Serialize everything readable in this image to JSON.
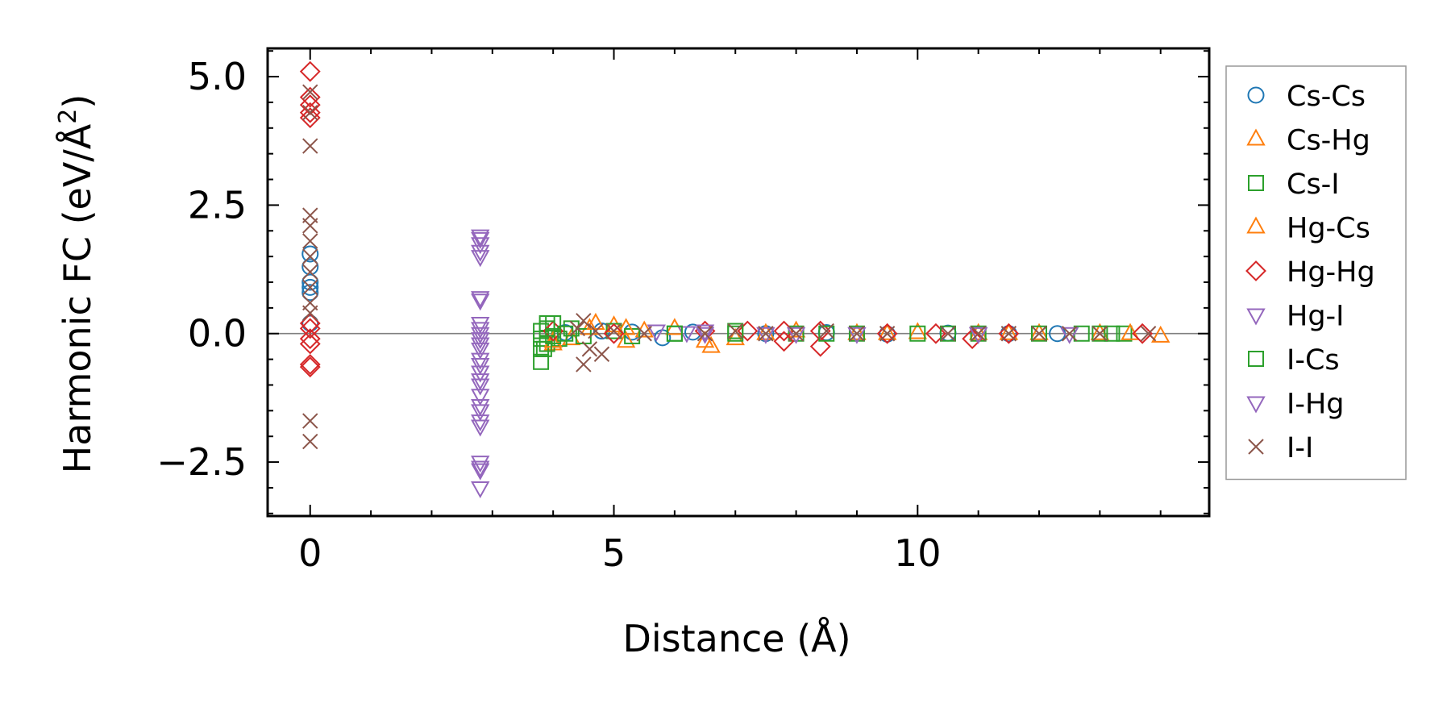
{
  "chart_data": {
    "type": "scatter",
    "title": "",
    "xlabel": "Distance (Å)",
    "ylabel_main": "Harmonic FC (eV/Å",
    "ylabel_sup": "2",
    "ylabel_close": ")",
    "xlim": [
      -0.7,
      14.8
    ],
    "ylim": [
      -3.55,
      5.55
    ],
    "xticks": [
      0,
      5,
      10
    ],
    "xtick_labels": [
      "0",
      "5",
      "10"
    ],
    "yticks": [
      -2.5,
      0.0,
      2.5,
      5.0
    ],
    "ytick_labels": [
      "−2.5",
      "0.0",
      "2.5",
      "5.0"
    ],
    "zero_line": true,
    "grid": false,
    "legend_position": "outside-right",
    "series": [
      {
        "name": "Cs-Cs",
        "marker": "circle",
        "color": "#1f77b4",
        "points": [
          [
            0,
            1.55
          ],
          [
            0,
            1.3
          ],
          [
            0,
            1.0
          ],
          [
            0,
            0.9
          ],
          [
            0,
            0.8
          ],
          [
            0,
            0.2
          ],
          [
            4.2,
            0.02
          ],
          [
            4.8,
            0.05
          ],
          [
            5.3,
            0.03
          ],
          [
            5.8,
            -0.08
          ],
          [
            6.3,
            0.03
          ],
          [
            7.5,
            0.0
          ],
          [
            8.5,
            0.02
          ],
          [
            9.5,
            -0.01
          ],
          [
            10.5,
            0.01
          ],
          [
            11.5,
            0.0
          ],
          [
            12.3,
            0.0
          ]
        ]
      },
      {
        "name": "Cs-Hg",
        "marker": "triangle-up",
        "color": "#ff7f0e",
        "points": [
          [
            4.0,
            -0.2
          ],
          [
            4.3,
            -0.1
          ],
          [
            4.6,
            0.1
          ],
          [
            5.0,
            0.15
          ],
          [
            5.2,
            -0.15
          ],
          [
            5.5,
            0.05
          ],
          [
            6.0,
            0.1
          ],
          [
            6.6,
            -0.25
          ],
          [
            7.0,
            -0.1
          ],
          [
            8.0,
            0.05
          ],
          [
            9.0,
            0.0
          ],
          [
            10.0,
            0.02
          ],
          [
            11.0,
            0.0
          ],
          [
            12.0,
            0.0
          ],
          [
            13.0,
            0.0
          ],
          [
            14.0,
            -0.05
          ]
        ]
      },
      {
        "name": "Cs-I",
        "marker": "square",
        "color": "#2ca02c",
        "points": [
          [
            3.8,
            -0.55
          ],
          [
            3.8,
            -0.3
          ],
          [
            3.8,
            -0.1
          ],
          [
            3.8,
            0.05
          ],
          [
            3.9,
            0.2
          ],
          [
            3.9,
            -0.2
          ],
          [
            4.0,
            0.2
          ],
          [
            4.1,
            -0.1
          ],
          [
            4.3,
            0.1
          ],
          [
            4.5,
            -0.05
          ],
          [
            5.0,
            0.05
          ],
          [
            5.3,
            -0.05
          ],
          [
            6.0,
            0.0
          ],
          [
            7.0,
            0.0
          ],
          [
            8.0,
            0.0
          ],
          [
            9.0,
            0.0
          ],
          [
            10.0,
            0.0
          ],
          [
            11.0,
            0.0
          ],
          [
            12.0,
            0.0
          ],
          [
            12.7,
            0.0
          ],
          [
            13.2,
            0.0
          ],
          [
            13.4,
            0.0
          ]
        ]
      },
      {
        "name": "Hg-Cs",
        "marker": "triangle-up",
        "color": "#ff7f0e",
        "points": [
          [
            4.0,
            -0.15
          ],
          [
            4.7,
            0.2
          ],
          [
            5.2,
            0.1
          ],
          [
            6.5,
            -0.15
          ],
          [
            7.5,
            0.0
          ],
          [
            9.5,
            0.0
          ],
          [
            11.5,
            0.0
          ],
          [
            13.5,
            0.0
          ]
        ]
      },
      {
        "name": "Hg-Hg",
        "marker": "diamond",
        "color": "#d62728",
        "points": [
          [
            0,
            5.1
          ],
          [
            0,
            4.6
          ],
          [
            0,
            4.45
          ],
          [
            0,
            4.3
          ],
          [
            0,
            4.2
          ],
          [
            0,
            0.2
          ],
          [
            0,
            0.1
          ],
          [
            0,
            -0.1
          ],
          [
            0,
            -0.2
          ],
          [
            0,
            -0.6
          ],
          [
            0,
            -0.65
          ],
          [
            4.0,
            0.05
          ],
          [
            5.0,
            0.0
          ],
          [
            6.5,
            0.05
          ],
          [
            7.2,
            0.05
          ],
          [
            7.8,
            -0.15
          ],
          [
            7.8,
            0.05
          ],
          [
            8.4,
            -0.25
          ],
          [
            8.4,
            0.05
          ],
          [
            9.5,
            0.0
          ],
          [
            10.3,
            0.0
          ],
          [
            10.9,
            -0.1
          ],
          [
            11.5,
            0.0
          ],
          [
            13.7,
            0.0
          ]
        ]
      },
      {
        "name": "Hg-I",
        "marker": "triangle-down",
        "color": "#9467bd",
        "points": [
          [
            2.8,
            1.9
          ],
          [
            2.8,
            1.75
          ],
          [
            2.8,
            1.6
          ],
          [
            2.8,
            1.5
          ],
          [
            2.8,
            0.65
          ],
          [
            2.8,
            0.2
          ],
          [
            2.8,
            0.1
          ],
          [
            2.8,
            0.0
          ],
          [
            2.8,
            -0.1
          ],
          [
            2.8,
            -0.3
          ],
          [
            2.8,
            -0.5
          ],
          [
            2.8,
            -0.6
          ],
          [
            2.8,
            -0.9
          ],
          [
            2.8,
            -1.0
          ],
          [
            2.8,
            -1.4
          ],
          [
            2.8,
            -1.5
          ],
          [
            2.8,
            -1.7
          ],
          [
            2.8,
            -1.8
          ],
          [
            2.8,
            -2.5
          ],
          [
            2.8,
            -2.65
          ],
          [
            2.8,
            -3.0
          ],
          [
            5.7,
            0.05
          ],
          [
            6.2,
            0.02
          ],
          [
            6.5,
            0.05
          ],
          [
            7.5,
            0.0
          ],
          [
            9.0,
            0.0
          ],
          [
            11.0,
            0.0
          ],
          [
            12.5,
            0.0
          ]
        ]
      },
      {
        "name": "I-Cs",
        "marker": "square",
        "color": "#2ca02c",
        "points": [
          [
            3.85,
            -0.3
          ],
          [
            3.9,
            0.1
          ],
          [
            4.0,
            -0.05
          ],
          [
            4.2,
            0.0
          ],
          [
            6.0,
            0.0
          ],
          [
            7.0,
            0.05
          ],
          [
            8.5,
            0.0
          ],
          [
            10.5,
            0.0
          ],
          [
            13.0,
            0.0
          ]
        ]
      },
      {
        "name": "I-Hg",
        "marker": "triangle-down",
        "color": "#9467bd",
        "points": [
          [
            2.8,
            1.85
          ],
          [
            2.8,
            0.7
          ],
          [
            2.8,
            -0.2
          ],
          [
            2.8,
            -0.75
          ],
          [
            2.8,
            -1.2
          ],
          [
            2.8,
            -2.6
          ],
          [
            6.5,
            0.0
          ],
          [
            8.0,
            0.0
          ],
          [
            11.0,
            0.0
          ]
        ]
      },
      {
        "name": "I-I",
        "marker": "x",
        "color": "#8c564b",
        "points": [
          [
            0,
            4.7
          ],
          [
            0,
            4.3
          ],
          [
            0,
            3.65
          ],
          [
            0,
            2.3
          ],
          [
            0,
            2.1
          ],
          [
            0,
            1.8
          ],
          [
            0,
            1.5
          ],
          [
            0,
            1.2
          ],
          [
            0,
            0.9
          ],
          [
            0,
            0.6
          ],
          [
            0,
            0.4
          ],
          [
            0,
            -1.7
          ],
          [
            0,
            -2.1
          ],
          [
            4.4,
            0.1
          ],
          [
            4.5,
            -0.6
          ],
          [
            4.5,
            0.25
          ],
          [
            4.6,
            -0.3
          ],
          [
            4.7,
            0.05
          ],
          [
            4.8,
            -0.4
          ],
          [
            5.0,
            0.05
          ],
          [
            5.5,
            0.0
          ],
          [
            6.5,
            0.0
          ],
          [
            7.0,
            0.05
          ],
          [
            7.5,
            0.0
          ],
          [
            8.0,
            0.0
          ],
          [
            8.5,
            0.05
          ],
          [
            9.0,
            0.0
          ],
          [
            9.5,
            0.0
          ],
          [
            10.5,
            0.0
          ],
          [
            11.0,
            0.0
          ],
          [
            11.5,
            0.0
          ],
          [
            12.0,
            0.0
          ],
          [
            12.5,
            0.0
          ],
          [
            13.0,
            0.0
          ],
          [
            13.8,
            0.0
          ]
        ]
      }
    ]
  }
}
